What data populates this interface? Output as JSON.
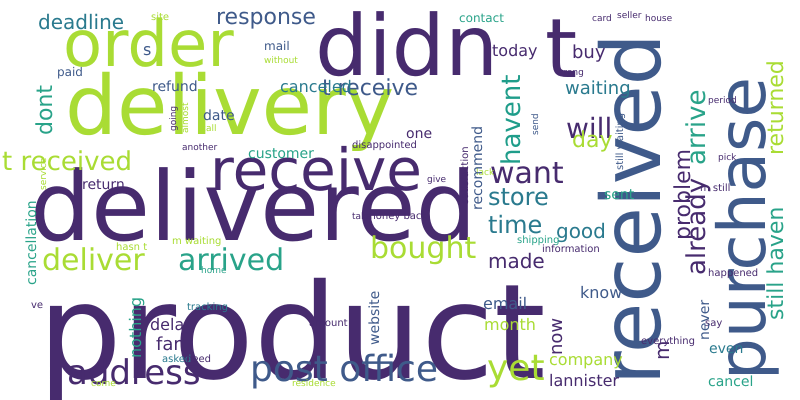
{
  "canvas": {
    "background": "#ffffff"
  },
  "words": [
    {
      "id": "w_product",
      "text": "product",
      "color": "#472b6e"
    },
    {
      "id": "w_delivered",
      "text": "delivered",
      "color": "#472b6e"
    },
    {
      "id": "w_delivery",
      "text": "delivery",
      "color": "#a9dc34"
    },
    {
      "id": "w_didnt",
      "text": "didn",
      "color": "#472b6e"
    },
    {
      "id": "w_t",
      "text": "t",
      "color": "#472b6e"
    },
    {
      "id": "w_order",
      "text": "order",
      "color": "#a9dc34"
    },
    {
      "id": "w_received_vert",
      "text": "received",
      "color": "#3f5a8a"
    },
    {
      "id": "w_purchase",
      "text": "purchase",
      "color": "#3f5a8a"
    },
    {
      "id": "w_receive_big",
      "text": "receive",
      "color": "#472b6e"
    },
    {
      "id": "w_post_office",
      "text": "post office",
      "color": "#3f5a8a"
    },
    {
      "id": "w_deliver",
      "text": "deliver",
      "color": "#a9dc34"
    },
    {
      "id": "w_arrived",
      "text": "arrived",
      "color": "#29a389"
    },
    {
      "id": "w_bought",
      "text": "bought",
      "color": "#a9dc34"
    },
    {
      "id": "w_address",
      "text": "address",
      "color": "#472b6e"
    },
    {
      "id": "w_want",
      "text": "want",
      "color": "#472b6e"
    },
    {
      "id": "w_store",
      "text": "store",
      "color": "#2a7a8e"
    },
    {
      "id": "w_time",
      "text": "time",
      "color": "#2a7a8e"
    },
    {
      "id": "w_good",
      "text": "good",
      "color": "#2a7a8e"
    },
    {
      "id": "w_yet",
      "text": "yet",
      "color": "#a9dc34"
    },
    {
      "id": "w_t_received",
      "text": "t received",
      "color": "#a9dc34"
    },
    {
      "id": "w_t_receive",
      "text": "t receive",
      "color": "#3f5a8a"
    },
    {
      "id": "w_havent",
      "text": "havent",
      "color": "#1f9d8a"
    },
    {
      "id": "w_will",
      "text": "will",
      "color": "#472b6e"
    },
    {
      "id": "w_arrive",
      "text": "arrive",
      "color": "#29a389"
    },
    {
      "id": "w_day",
      "text": "day",
      "color": "#a9dc34"
    },
    {
      "id": "w_already",
      "text": "already",
      "color": "#472b6e"
    },
    {
      "id": "w_problem",
      "text": "problem",
      "color": "#472b6e"
    },
    {
      "id": "w_returned",
      "text": "returned",
      "color": "#a9dc34"
    },
    {
      "id": "w_still_haven",
      "text": "still haven",
      "color": "#29a389"
    },
    {
      "id": "w_deadline",
      "text": "deadline",
      "color": "#2a7a8e"
    },
    {
      "id": "w_response",
      "text": "response",
      "color": "#3f5a8a"
    },
    {
      "id": "w_waiting",
      "text": "waiting",
      "color": "#2a7a8e"
    },
    {
      "id": "w_today",
      "text": "today",
      "color": "#472b6e"
    },
    {
      "id": "w_buy",
      "text": "buy",
      "color": "#472b6e"
    },
    {
      "id": "w_dont",
      "text": "dont",
      "color": "#29a389"
    },
    {
      "id": "w_canceled",
      "text": "canceled",
      "color": "#2a7a8e"
    },
    {
      "id": "w_refund",
      "text": "refund",
      "color": "#3f5a8a"
    },
    {
      "id": "w_date",
      "text": "date",
      "color": "#3f5a8a"
    },
    {
      "id": "w_customer",
      "text": "customer",
      "color": "#29a389"
    },
    {
      "id": "w_recommend",
      "text": "recommend",
      "color": "#3f5a8a"
    },
    {
      "id": "w_return",
      "text": "return",
      "color": "#472b6e"
    },
    {
      "id": "w_sent",
      "text": "sent",
      "color": "#29a389"
    },
    {
      "id": "w_made",
      "text": "made",
      "color": "#472b6e"
    },
    {
      "id": "w_email",
      "text": "email",
      "color": "#3f5a8a"
    },
    {
      "id": "w_month",
      "text": "month",
      "color": "#a9dc34"
    },
    {
      "id": "w_delay",
      "text": "delay",
      "color": "#472b6e"
    },
    {
      "id": "w_far",
      "text": "far",
      "color": "#472b6e"
    },
    {
      "id": "w_nothing",
      "text": "nothing",
      "color": "#29a389"
    },
    {
      "id": "w_know",
      "text": "know",
      "color": "#472b6e"
    },
    {
      "id": "w_now",
      "text": "now",
      "color": "#3f5a8a"
    },
    {
      "id": "w_company",
      "text": "company",
      "color": "#a9dc34"
    },
    {
      "id": "w_lannister",
      "text": "lannister",
      "color": "#472b6e"
    },
    {
      "id": "w_cancel",
      "text": "cancel",
      "color": "#29a389"
    },
    {
      "id": "w_even",
      "text": "even",
      "color": "#2a7a8e"
    },
    {
      "id": "w_never",
      "text": "never",
      "color": "#3f5a8a"
    },
    {
      "id": "w_m_vert",
      "text": "m",
      "color": "#472b6e"
    },
    {
      "id": "w_cancellation",
      "text": "cancellation",
      "color": "#29a389"
    },
    {
      "id": "w_website",
      "text": "website",
      "color": "#3f5a8a"
    },
    {
      "id": "w_contact",
      "text": "contact",
      "color": "#29a389"
    },
    {
      "id": "w_mail",
      "text": "mail",
      "color": "#3f5a8a"
    },
    {
      "id": "w_paid",
      "text": "paid",
      "color": "#3f5a8a"
    },
    {
      "id": "w_s",
      "text": "s",
      "color": "#3f5a8a"
    },
    {
      "id": "w_one",
      "text": "one",
      "color": "#472b6e"
    },
    {
      "id": "w_disappointed",
      "text": "disappointed",
      "color": "#472b6e"
    },
    {
      "id": "w_satisfaction",
      "text": "satisfaction",
      "color": "#472b6e"
    },
    {
      "id": "w_still_waiting",
      "text": "still waiting",
      "color": "#3f5a8a"
    },
    {
      "id": "w_information",
      "text": "information",
      "color": "#472b6e"
    },
    {
      "id": "w_money_back",
      "text": "money back",
      "color": "#472b6e"
    },
    {
      "id": "w_m_still",
      "text": "m still",
      "color": "#472b6e"
    },
    {
      "id": "w_hasnt",
      "text": "hasn t",
      "color": "#a9dc34"
    },
    {
      "id": "w_m_waiting",
      "text": "m waiting",
      "color": "#a9dc34"
    },
    {
      "id": "w_shipping",
      "text": "shipping",
      "color": "#29a389"
    },
    {
      "id": "w_tracking",
      "text": "tracking",
      "color": "#2a7a8e"
    },
    {
      "id": "w_amount",
      "text": "amount",
      "color": "#472b6e"
    },
    {
      "id": "w_asked",
      "text": "asked",
      "color": "#2a7a8e"
    },
    {
      "id": "w_need",
      "text": "need",
      "color": "#472b6e"
    },
    {
      "id": "w_ve",
      "text": "ve",
      "color": "#472b6e"
    },
    {
      "id": "w_say",
      "text": "say",
      "color": "#472b6e"
    },
    {
      "id": "w_everything",
      "text": "everything",
      "color": "#472b6e"
    },
    {
      "id": "w_happened",
      "text": "happened",
      "color": "#472b6e"
    },
    {
      "id": "w_site",
      "text": "site",
      "color": "#a9dc34"
    },
    {
      "id": "w_card",
      "text": "card",
      "color": "#472b6e"
    },
    {
      "id": "w_seller",
      "text": "seller",
      "color": "#472b6e"
    },
    {
      "id": "w_house",
      "text": "house",
      "color": "#472b6e"
    },
    {
      "id": "w_without",
      "text": "without",
      "color": "#a9dc34"
    },
    {
      "id": "w_wrong",
      "text": "wrong",
      "color": "#472b6e"
    },
    {
      "id": "w_period",
      "text": "period",
      "color": "#472b6e"
    },
    {
      "id": "w_almost",
      "text": "almost",
      "color": "#a9dc34"
    },
    {
      "id": "w_call",
      "text": "call",
      "color": "#472b6e"
    },
    {
      "id": "w_going",
      "text": "going",
      "color": "#a9dc34"
    },
    {
      "id": "w_another",
      "text": "another",
      "color": "#472b6e"
    },
    {
      "id": "w_send",
      "text": "send",
      "color": "#3f5a8a"
    },
    {
      "id": "w_pick",
      "text": "pick",
      "color": "#472b6e"
    },
    {
      "id": "w_lack",
      "text": "lack",
      "color": "#a9dc34"
    },
    {
      "id": "w_give",
      "text": "give",
      "color": "#472b6e"
    },
    {
      "id": "w_take",
      "text": "take",
      "color": "#472b6e"
    },
    {
      "id": "w_service",
      "text": "service",
      "color": "#a9dc34"
    },
    {
      "id": "w_home",
      "text": "home",
      "color": "#29a389"
    },
    {
      "id": "w_residence",
      "text": "residence",
      "color": "#a9dc34"
    },
    {
      "id": "w_come",
      "text": "come",
      "color": "#a9dc34"
    }
  ]
}
